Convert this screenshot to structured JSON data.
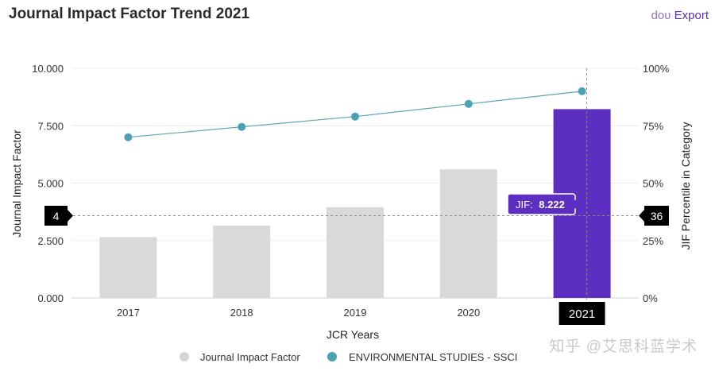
{
  "header": {
    "title": "Journal Impact Factor Trend 2021",
    "export_prefix": "doʋ",
    "export_label": "Export"
  },
  "watermark": "知乎 @艾思科蓝学术",
  "tooltip": {
    "label": "JIF:",
    "value": "8.222"
  },
  "crosshair": {
    "left_marker": "4",
    "right_marker": "36"
  },
  "colors": {
    "bar_default": "#d9d9d9",
    "bar_highlight": "#5c2fc2",
    "line": "#5aa6b4",
    "point": "#4aa3b5"
  },
  "chart_data": {
    "type": "bar",
    "categories": [
      "2017",
      "2018",
      "2019",
      "2020",
      "2021"
    ],
    "highlight_category": "2021",
    "series": [
      {
        "name": "Journal Impact Factor",
        "kind": "bar",
        "axis": "left",
        "values": [
          2.65,
          3.15,
          3.95,
          5.6,
          8.222
        ]
      },
      {
        "name": "ENVIRONMENTAL STUDIES - SSCI",
        "kind": "line",
        "axis": "right",
        "values": [
          70,
          74.5,
          79,
          84.5,
          90
        ]
      }
    ],
    "xlabel": "JCR Years",
    "ylabel": "Journal Impact Factor",
    "y2label": "JIF Percentile in Category",
    "ylim": [
      0,
      10
    ],
    "y2lim": [
      0,
      100
    ],
    "yticks": [
      "0.000",
      "2.500",
      "5.000",
      "7.500",
      "10.000"
    ],
    "y2ticks": [
      "0%",
      "25%",
      "50%",
      "75%",
      "100%"
    ],
    "grid": true,
    "legend_position": "bottom"
  }
}
